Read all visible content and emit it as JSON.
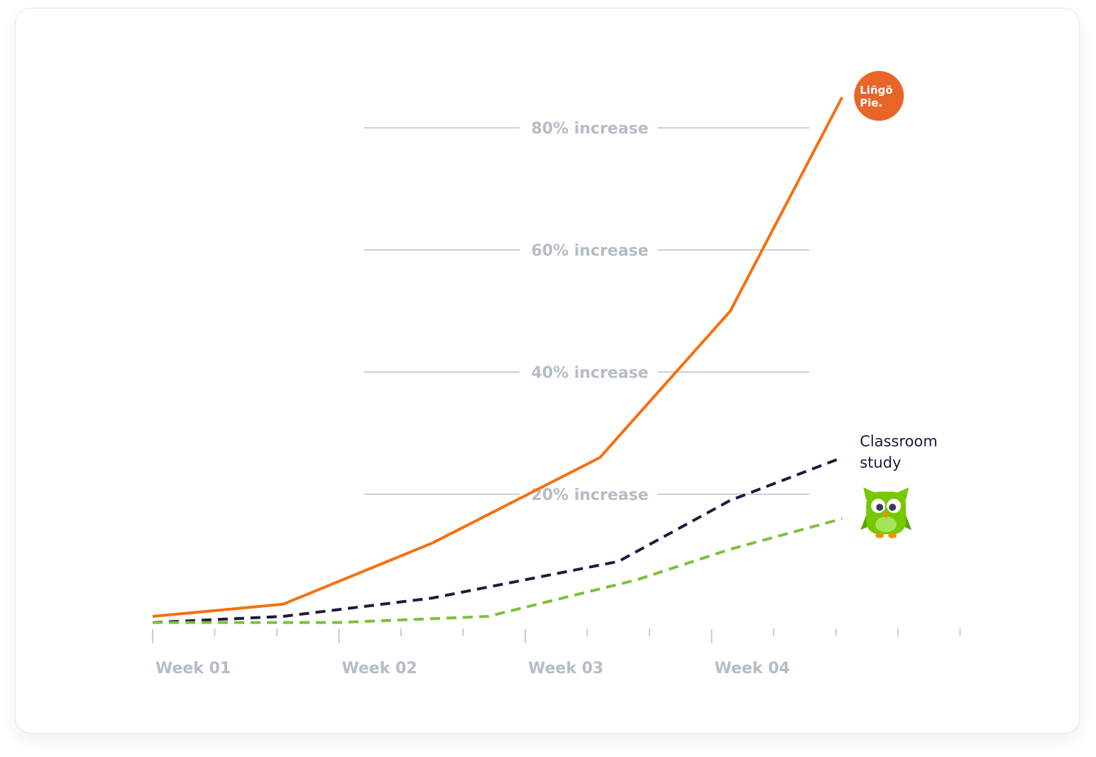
{
  "chart_data": {
    "type": "line",
    "title": "",
    "xlabel": "",
    "ylabel": "",
    "x_tick_labels": [
      "Week 01",
      "Week 02",
      "Week 03",
      "Week 04"
    ],
    "y_gridlines": [
      {
        "value": 20,
        "label": "20% increase"
      },
      {
        "value": 40,
        "label": "40% increase"
      },
      {
        "value": 60,
        "label": "60% increase"
      },
      {
        "value": 80,
        "label": "80% increase"
      }
    ],
    "ylim": [
      -19,
      88
    ],
    "xlim": [
      0,
      4.5
    ],
    "series": [
      {
        "id": "lingopie",
        "logo_text": [
          "Liñgö",
          "Pie."
        ],
        "style": "solid",
        "color": "#f57010",
        "points": [
          [
            0,
            0
          ],
          [
            0.7,
            2
          ],
          [
            1.5,
            12
          ],
          [
            2.4,
            26
          ],
          [
            3.1,
            50
          ],
          [
            3.7,
            85
          ]
        ]
      },
      {
        "id": "classroom",
        "name": "Classroom study",
        "name_lines": [
          "Classroom",
          "study"
        ],
        "style": "dashed",
        "color": "#1e1a3d",
        "points": [
          [
            0,
            -1
          ],
          [
            0.7,
            0
          ],
          [
            1.5,
            3
          ],
          [
            2.5,
            9
          ],
          [
            3.1,
            19
          ],
          [
            3.7,
            26
          ]
        ]
      },
      {
        "id": "duolingo",
        "logo_icon": "owl-mascot-icon",
        "style": "dashed",
        "color": "#7cc03c",
        "points": [
          [
            0,
            -1
          ],
          [
            0.7,
            -1
          ],
          [
            1.0,
            -1
          ],
          [
            1.8,
            0
          ],
          [
            2.6,
            6
          ],
          [
            3.1,
            11
          ],
          [
            3.7,
            16
          ]
        ]
      }
    ]
  }
}
